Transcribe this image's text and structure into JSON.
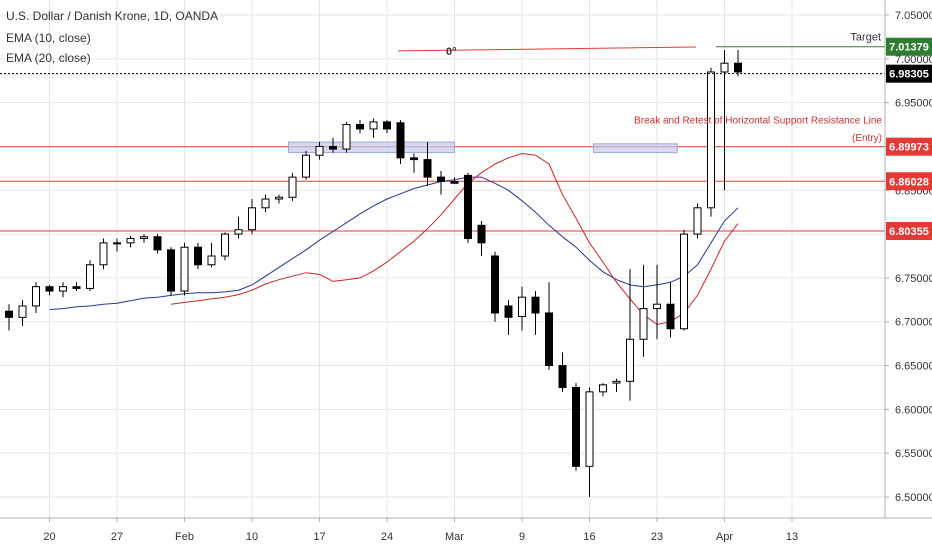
{
  "header": {
    "title": "U.S. Dollar / Danish Krone, 1D, OANDA",
    "ema10": "EMA (10, close)",
    "ema20": "EMA (20, close)"
  },
  "chart_data": {
    "type": "candlestick",
    "title": "U.S. Dollar / Danish Krone, 1D, OANDA",
    "ylim": [
      6.48,
      7.07
    ],
    "y_ticks": [
      "7.05000",
      "7.00000",
      "6.95000",
      "6.90000",
      "6.85000",
      "6.80000",
      "6.75000",
      "6.70000",
      "6.65000",
      "6.60000",
      "6.55000",
      "6.50000"
    ],
    "x_ticks": [
      {
        "label": "20",
        "i": 3
      },
      {
        "label": "27",
        "i": 8
      },
      {
        "label": "Feb",
        "i": 13
      },
      {
        "label": "10",
        "i": 18
      },
      {
        "label": "17",
        "i": 23
      },
      {
        "label": "24",
        "i": 28
      },
      {
        "label": "Mar",
        "i": 33
      },
      {
        "label": "9",
        "i": 38
      },
      {
        "label": "16",
        "i": 43
      },
      {
        "label": "23",
        "i": 48
      },
      {
        "label": "Apr",
        "i": 53
      },
      {
        "label": "13",
        "i": 58
      }
    ],
    "candles": [
      [
        6.712,
        6.72,
        6.69,
        6.705
      ],
      [
        6.705,
        6.725,
        6.695,
        6.718
      ],
      [
        6.718,
        6.745,
        6.71,
        6.74
      ],
      [
        6.74,
        6.742,
        6.73,
        6.735
      ],
      [
        6.735,
        6.745,
        6.728,
        6.74
      ],
      [
        6.74,
        6.745,
        6.735,
        6.738
      ],
      [
        6.738,
        6.77,
        6.735,
        6.765
      ],
      [
        6.765,
        6.795,
        6.76,
        6.79
      ],
      [
        6.79,
        6.795,
        6.78,
        6.79
      ],
      [
        6.79,
        6.798,
        6.785,
        6.795
      ],
      [
        6.795,
        6.8,
        6.79,
        6.797
      ],
      [
        6.797,
        6.8,
        6.778,
        6.782
      ],
      [
        6.782,
        6.785,
        6.73,
        6.735
      ],
      [
        6.735,
        6.79,
        6.73,
        6.785
      ],
      [
        6.785,
        6.79,
        6.76,
        6.765
      ],
      [
        6.765,
        6.79,
        6.762,
        6.775
      ],
      [
        6.775,
        6.802,
        6.77,
        6.8
      ],
      [
        6.8,
        6.82,
        6.795,
        6.805
      ],
      [
        6.805,
        6.84,
        6.8,
        6.83
      ],
      [
        6.83,
        6.845,
        6.825,
        6.84
      ],
      [
        6.84,
        6.845,
        6.835,
        6.842
      ],
      [
        6.842,
        6.87,
        6.838,
        6.865
      ],
      [
        6.865,
        6.895,
        6.862,
        6.89
      ],
      [
        6.89,
        6.905,
        6.885,
        6.9
      ],
      [
        6.9,
        6.91,
        6.893,
        6.897
      ],
      [
        6.897,
        6.928,
        6.893,
        6.925
      ],
      [
        6.925,
        6.93,
        6.915,
        6.92
      ],
      [
        6.92,
        6.932,
        6.91,
        6.928
      ],
      [
        6.928,
        6.93,
        6.915,
        6.92
      ],
      [
        6.927,
        6.93,
        6.88,
        6.887
      ],
      [
        6.887,
        6.892,
        6.87,
        6.885
      ],
      [
        6.885,
        6.905,
        6.855,
        6.865
      ],
      [
        6.865,
        6.872,
        6.845,
        6.86
      ],
      [
        6.86,
        6.865,
        6.857,
        6.858
      ],
      [
        6.867,
        6.87,
        6.79,
        6.795
      ],
      [
        6.81,
        6.815,
        6.775,
        6.79
      ],
      [
        6.775,
        6.78,
        6.7,
        6.71
      ],
      [
        6.718,
        6.725,
        6.685,
        6.705
      ],
      [
        6.706,
        6.74,
        6.69,
        6.728
      ],
      [
        6.728,
        6.735,
        6.685,
        6.71
      ],
      [
        6.71,
        6.745,
        6.645,
        6.65
      ],
      [
        6.65,
        6.665,
        6.62,
        6.625
      ],
      [
        6.625,
        6.63,
        6.53,
        6.535
      ],
      [
        6.535,
        6.625,
        6.5,
        6.62
      ],
      [
        6.62,
        6.63,
        6.615,
        6.628
      ],
      [
        6.63,
        6.635,
        6.62,
        6.632
      ],
      [
        6.632,
        6.76,
        6.61,
        6.68
      ],
      [
        6.68,
        6.765,
        6.66,
        6.715
      ],
      [
        6.715,
        6.765,
        6.68,
        6.72
      ],
      [
        6.72,
        6.745,
        6.682,
        6.692
      ],
      [
        6.692,
        6.805,
        6.69,
        6.8
      ],
      [
        6.8,
        6.835,
        6.795,
        6.83
      ],
      [
        6.83,
        6.99,
        6.82,
        6.985
      ],
      [
        6.985,
        7.01,
        6.85,
        6.995
      ],
      [
        6.995,
        7.01,
        6.98,
        6.985
      ]
    ],
    "ema10": [
      6.72,
      6.722,
      6.724,
      6.726,
      6.728,
      6.731,
      6.736,
      6.743,
      6.748,
      6.752,
      6.756,
      6.754,
      6.746,
      6.748,
      6.75,
      6.758,
      6.768,
      6.78,
      6.792,
      6.806,
      6.822,
      6.84,
      6.858,
      6.87,
      6.88,
      6.887,
      6.892,
      6.89,
      6.88,
      6.845,
      6.818,
      6.79,
      6.768,
      6.745,
      6.726,
      6.708,
      6.697,
      6.7,
      6.71,
      6.73,
      6.76,
      6.792,
      6.812
    ],
    "ema20": [
      6.714,
      6.715,
      6.717,
      6.718,
      6.72,
      6.721,
      6.724,
      6.727,
      6.728,
      6.73,
      6.732,
      6.733,
      6.733,
      6.734,
      6.736,
      6.742,
      6.752,
      6.762,
      6.772,
      6.782,
      6.793,
      6.803,
      6.813,
      6.823,
      6.832,
      6.84,
      6.846,
      6.852,
      6.856,
      6.86,
      6.862,
      6.865,
      6.865,
      6.858,
      6.85,
      6.838,
      6.825,
      6.81,
      6.797,
      6.785,
      6.77,
      6.757,
      6.748,
      6.742,
      6.74,
      6.742,
      6.745,
      6.752,
      6.765,
      6.79,
      6.815,
      6.83
    ]
  },
  "levels": [
    {
      "label": "6.89973",
      "value": 6.89973,
      "color": "#e53935"
    },
    {
      "label": "6.86028",
      "value": 6.86028,
      "color": "#e53935"
    },
    {
      "label": "6.80355",
      "value": 6.80355,
      "color": "#e53935"
    }
  ],
  "target": {
    "label": "Target",
    "price": "7.01379",
    "value": 7.01379,
    "color": "#2e7d32"
  },
  "current": {
    "price": "6.98305",
    "value": 6.98305
  },
  "fib_label": "0°",
  "annotation_line1": "Break and Retest of Horizontal Support Resistance Line",
  "annotation_line2": "(Entry)",
  "colors": {
    "ema10": "#c62828",
    "ema20": "#283593",
    "up": "#ffffff",
    "down": "#000000",
    "grid": "#e6e6e6"
  }
}
